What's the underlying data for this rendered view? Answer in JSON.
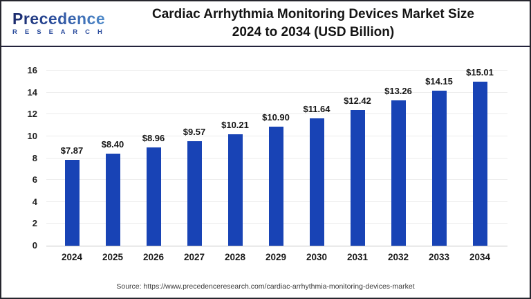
{
  "header": {
    "logo_brand": "Precedence",
    "logo_sub": "R E S E A R C H",
    "title_line1": "Cardiac Arrhythmia Monitoring Devices Market Size",
    "title_line2": "2024 to 2034 (USD Billion)"
  },
  "chart_data": {
    "type": "bar",
    "title": "Cardiac Arrhythmia Monitoring Devices Market Size 2024 to 2034 (USD Billion)",
    "categories": [
      "2024",
      "2025",
      "2026",
      "2027",
      "2028",
      "2029",
      "2030",
      "2031",
      "2032",
      "2033",
      "2034"
    ],
    "values": [
      7.87,
      8.4,
      8.96,
      9.57,
      10.21,
      10.9,
      11.64,
      12.42,
      13.26,
      14.15,
      15.01
    ],
    "value_labels": [
      "$7.87",
      "$8.40",
      "$8.96",
      "$9.57",
      "$10.21",
      "$10.90",
      "$11.64",
      "$12.42",
      "$13.26",
      "$14.15",
      "$15.01"
    ],
    "xlabel": "",
    "ylabel": "",
    "ylim": [
      0,
      16
    ],
    "ytick_step": 2,
    "grid": true,
    "legend": "none",
    "bar_color": "#1843b5"
  },
  "footer": {
    "source": "Source: https://www.precedenceresearch.com/cardiac-arrhythmia-monitoring-devices-market"
  }
}
